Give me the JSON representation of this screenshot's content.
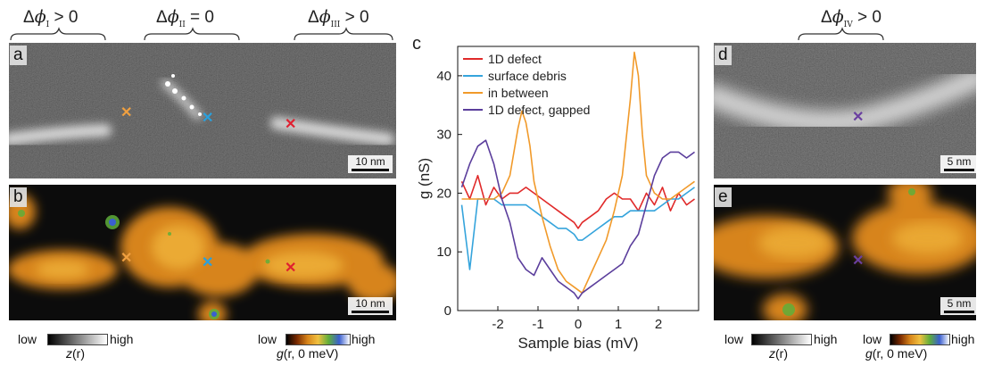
{
  "top_labels": {
    "phi_I": {
      "delta": "Δ",
      "phi": "ϕ",
      "sub": "I",
      "rel": " > 0"
    },
    "phi_II": {
      "delta": "Δ",
      "phi": "ϕ",
      "sub": "II",
      "rel": " = 0"
    },
    "phi_III": {
      "delta": "Δ",
      "phi": "ϕ",
      "sub": "III",
      "rel": " > 0"
    },
    "phi_IV": {
      "delta": "Δ",
      "phi": "ϕ",
      "sub": "IV",
      "rel": " > 0"
    }
  },
  "panels": {
    "a": {
      "letter": "a",
      "scalebar": "10 nm"
    },
    "b": {
      "letter": "b",
      "scalebar": "10 nm"
    },
    "c": {
      "letter": "c"
    },
    "d": {
      "letter": "d",
      "scalebar": "5 nm"
    },
    "e": {
      "letter": "e",
      "scalebar": "5 nm"
    }
  },
  "markers": {
    "orange": "#f0a040",
    "blue": "#2aa0dc",
    "red": "#e02030",
    "purple": "#6a3fa0",
    "symbol": "✕"
  },
  "colorbars": {
    "left_z": {
      "low": "low",
      "high": "high",
      "label_pre": "z",
      "label_post": "(r)"
    },
    "left_g": {
      "low": "low",
      "high": "high",
      "label_pre": "g",
      "label_post": "(r, 0 meV)"
    },
    "right_z": {
      "low": "low",
      "high": "high",
      "label_pre": "z",
      "label_post": "(r)"
    },
    "right_g": {
      "low": "low",
      "high": "high",
      "label_pre": "g",
      "label_post": "(r, 0 meV)"
    }
  },
  "chart_data": {
    "type": "line",
    "xlabel": "Sample bias (mV)",
    "ylabel": "g (nS)",
    "xlim": [
      -3,
      3
    ],
    "ylim": [
      0,
      45
    ],
    "xticks": [
      -2,
      -1,
      0,
      1,
      2
    ],
    "yticks": [
      0,
      10,
      20,
      30,
      40
    ],
    "legend_position": "top-left",
    "series": [
      {
        "name": "1D defect",
        "color": "#e02a2a",
        "x": [
          -2.9,
          -2.7,
          -2.5,
          -2.3,
          -2.1,
          -1.9,
          -1.7,
          -1.5,
          -1.3,
          -1.1,
          -0.9,
          -0.7,
          -0.5,
          -0.3,
          -0.1,
          0.0,
          0.1,
          0.3,
          0.5,
          0.7,
          0.9,
          1.1,
          1.3,
          1.5,
          1.7,
          1.9,
          2.1,
          2.3,
          2.5,
          2.7,
          2.9
        ],
        "y": [
          22,
          19,
          23,
          18,
          21,
          19,
          20,
          20,
          21,
          20,
          19,
          18,
          17,
          16,
          15,
          14,
          15,
          16,
          17,
          19,
          20,
          19,
          19,
          17,
          20,
          18,
          21,
          17,
          20,
          18,
          19
        ]
      },
      {
        "name": "surface debris",
        "color": "#35a4dc",
        "x": [
          -2.9,
          -2.7,
          -2.5,
          -2.3,
          -2.1,
          -1.9,
          -1.7,
          -1.5,
          -1.3,
          -1.1,
          -0.9,
          -0.7,
          -0.5,
          -0.3,
          -0.1,
          0.0,
          0.1,
          0.3,
          0.5,
          0.7,
          0.9,
          1.1,
          1.3,
          1.5,
          1.7,
          1.9,
          2.1,
          2.3,
          2.5,
          2.7,
          2.9
        ],
        "y": [
          18,
          7,
          19,
          19,
          19,
          18,
          18,
          18,
          18,
          17,
          16,
          15,
          14,
          14,
          13,
          12,
          12,
          13,
          14,
          15,
          16,
          16,
          17,
          17,
          17,
          17,
          18,
          19,
          19,
          20,
          21
        ]
      },
      {
        "name": "in between",
        "color": "#f19a2a",
        "x": [
          -2.9,
          -2.7,
          -2.5,
          -2.3,
          -2.1,
          -1.9,
          -1.7,
          -1.5,
          -1.4,
          -1.3,
          -1.2,
          -1.1,
          -0.9,
          -0.7,
          -0.5,
          -0.3,
          -0.1,
          0.1,
          0.3,
          0.5,
          0.7,
          0.9,
          1.1,
          1.3,
          1.4,
          1.5,
          1.6,
          1.7,
          1.9,
          2.1,
          2.3,
          2.5,
          2.7,
          2.9
        ],
        "y": [
          19,
          19,
          19,
          19,
          19,
          20,
          23,
          31,
          34,
          32,
          28,
          22,
          16,
          11,
          7,
          5,
          4,
          3,
          6,
          9,
          12,
          17,
          23,
          36,
          44,
          40,
          30,
          23,
          20,
          19,
          19,
          20,
          21,
          22
        ]
      },
      {
        "name": "1D defect, gapped",
        "color": "#5b3e9c",
        "x": [
          -2.9,
          -2.7,
          -2.5,
          -2.3,
          -2.1,
          -1.9,
          -1.7,
          -1.5,
          -1.3,
          -1.1,
          -0.9,
          -0.7,
          -0.5,
          -0.3,
          -0.1,
          0.0,
          0.1,
          0.3,
          0.5,
          0.7,
          0.9,
          1.1,
          1.3,
          1.5,
          1.7,
          1.9,
          2.1,
          2.3,
          2.5,
          2.7,
          2.9
        ],
        "y": [
          21,
          25,
          28,
          29,
          25,
          19,
          15,
          9,
          7,
          6,
          9,
          7,
          5,
          4,
          3,
          2,
          3,
          4,
          5,
          6,
          7,
          8,
          11,
          13,
          18,
          23,
          26,
          27,
          27,
          26,
          27
        ]
      }
    ]
  }
}
